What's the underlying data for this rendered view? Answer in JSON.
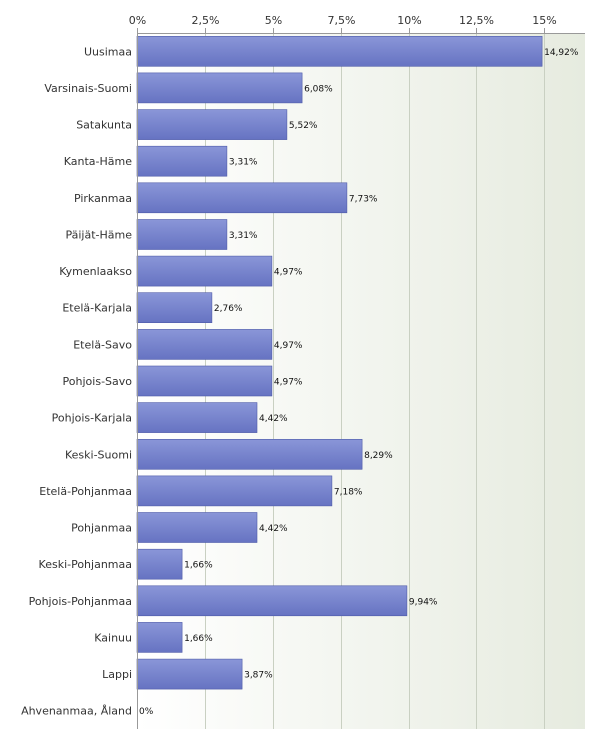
{
  "chart_data": {
    "type": "bar",
    "orientation": "horizontal",
    "title": "",
    "xlabel": "",
    "ylabel": "",
    "xlim": [
      0,
      16.5
    ],
    "x_ticks": [
      0,
      2.5,
      5,
      7.5,
      10,
      12.5,
      15
    ],
    "x_tick_labels": [
      "0%",
      "2,5%",
      "5%",
      "7,5%",
      "10%",
      "12,5%",
      "15%"
    ],
    "x_axis_position": "top",
    "grid": true,
    "categories": [
      "Uusimaa",
      "Varsinais-Suomi",
      "Satakunta",
      "Kanta-Häme",
      "Pirkanmaa",
      "Päijät-Häme",
      "Kymenlaakso",
      "Etelä-Karjala",
      "Etelä-Savo",
      "Pohjois-Savo",
      "Pohjois-Karjala",
      "Keski-Suomi",
      "Etelä-Pohjanmaa",
      "Pohjanmaa",
      "Keski-Pohjanmaa",
      "Pohjois-Pohjanmaa",
      "Kainuu",
      "Lappi",
      "Ahvenanmaa, Åland"
    ],
    "values": [
      14.92,
      6.08,
      5.52,
      3.31,
      7.73,
      3.31,
      4.97,
      2.76,
      4.97,
      4.97,
      4.42,
      8.29,
      7.18,
      4.42,
      1.66,
      9.94,
      1.66,
      3.87,
      0
    ],
    "value_labels": [
      "14,92%",
      "6,08%",
      "5,52%",
      "3,31%",
      "7,73%",
      "3,31%",
      "4,97%",
      "2,76%",
      "4,97%",
      "4,97%",
      "4,42%",
      "8,29%",
      "7,18%",
      "4,42%",
      "1,66%",
      "9,94%",
      "1,66%",
      "3,87%",
      "0%"
    ],
    "colors": {
      "bar_top": "#8a96d8",
      "bar_bottom": "#6673c2",
      "bar_edge": "#4e5aa8",
      "plot_bg_left": "#ffffff",
      "plot_bg_right": "#e6ebdf",
      "grid": "#c9d0c2",
      "axis": "#999999"
    }
  }
}
